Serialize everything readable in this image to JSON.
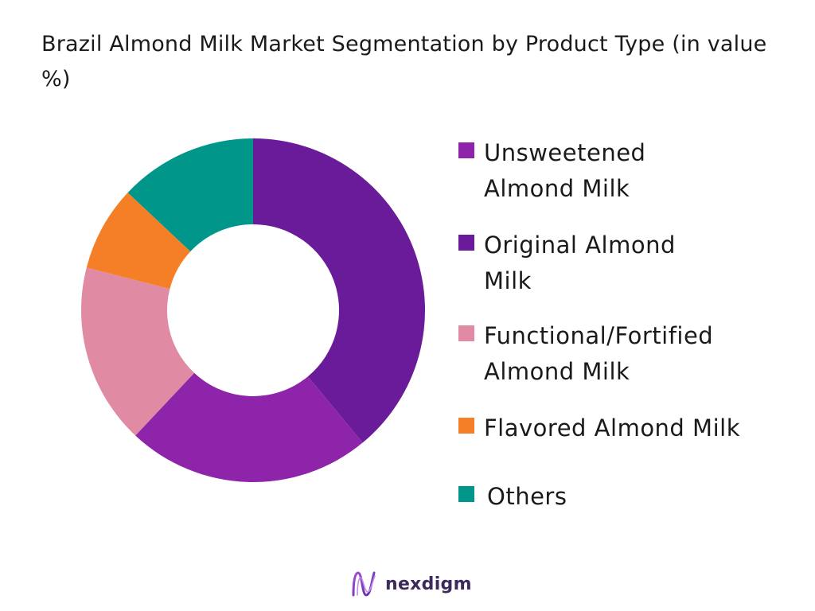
{
  "chart_data": {
    "type": "pie",
    "title": "Brazil Almond Milk Market Segmentation by Product Type (in value %)",
    "unit": "%",
    "donut": true,
    "legend_position": "right",
    "categories": [
      "Original Almond Milk",
      "Unsweetened Almond Milk",
      "Functional/Fortified Almond Milk",
      "Flavored Almond Milk",
      "Others"
    ],
    "values": [
      39,
      23,
      17,
      8,
      13
    ],
    "colors": [
      "#6a1b9a",
      "#8e24aa",
      "#e08aa3",
      "#f57f27",
      "#00968a"
    ]
  },
  "legend": {
    "items": [
      {
        "label": "Unsweetened Almond Milk",
        "color": "#8e24aa"
      },
      {
        "label": "Original Almond Milk",
        "color": "#6a1b9a"
      },
      {
        "label": "Functional/Fortified Almond Milk",
        "color": "#e08aa3"
      },
      {
        "label": "Flavored Almond Milk",
        "color": "#f57f27"
      },
      {
        "label": "Others",
        "color": "#00968a"
      }
    ]
  },
  "brand": {
    "name": "nexdigm",
    "logo_icon": "nexdigm-logo-icon",
    "color": "#3d2a5c"
  }
}
